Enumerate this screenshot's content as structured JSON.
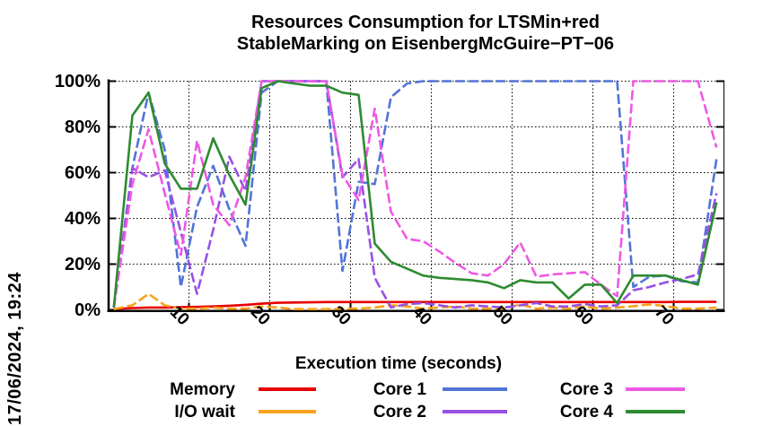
{
  "title": {
    "line1": "Resources Consumption for LTSMin+red",
    "line2": "StableMarking on EisenbergMcGuire−PT−06"
  },
  "datestamp": "17/06/2024, 19:24",
  "axes": {
    "x": {
      "label": "Execution time (seconds)",
      "tick_values": [
        10,
        20,
        30,
        40,
        50,
        60,
        70
      ],
      "range": [
        0,
        76.3
      ]
    },
    "y": {
      "tick_labels": [
        "0%",
        "20%",
        "40%",
        "60%",
        "80%",
        "100%"
      ],
      "tick_values": [
        0,
        20,
        40,
        60,
        80,
        100
      ],
      "range": [
        0,
        100
      ]
    }
  },
  "legend": [
    {
      "label": "Memory",
      "color": "#e60000",
      "dash": "solid"
    },
    {
      "label": "I/O wait",
      "color": "#f9a21b",
      "dash": "dashed"
    },
    {
      "label": "Core 1",
      "color": "#5274d6",
      "dash": "dashed"
    },
    {
      "label": "Core 2",
      "color": "#9651e4",
      "dash": "dashed"
    },
    {
      "label": "Core 3",
      "color": "#ee58e4",
      "dash": "dashed"
    },
    {
      "label": "Core 4",
      "color": "#2e8b30",
      "dash": "solid"
    }
  ],
  "chart_data": {
    "type": "line",
    "title": "Resources Consumption for LTSMin+red StableMarking on EisenbergMcGuire−PT−06",
    "xlabel": "Execution time (seconds)",
    "ylabel": "",
    "xlim": [
      0,
      76.3
    ],
    "ylim": [
      0,
      100
    ],
    "grid": true,
    "grid_style": "dotted",
    "legend_position": "bottom",
    "x": [
      0.7,
      3,
      5,
      7,
      9,
      11,
      13,
      15,
      17,
      19,
      21,
      23,
      25,
      27,
      29,
      31,
      33,
      35,
      37,
      39,
      41,
      43,
      45,
      47,
      49,
      51,
      53,
      55,
      57,
      59,
      61,
      63,
      65,
      67,
      69,
      71,
      73,
      75.3
    ],
    "series": [
      {
        "name": "Memory",
        "color": "#e60000",
        "dash": "solid",
        "values": [
          0.4,
          0.8,
          1.0,
          1.0,
          1.2,
          1.3,
          1.5,
          1.8,
          2.2,
          2.7,
          3.1,
          3.2,
          3.3,
          3.4,
          3.4,
          3.4,
          3.4,
          3.4,
          3.4,
          3.4,
          3.4,
          3.4,
          3.4,
          3.4,
          3.4,
          3.4,
          3.4,
          3.4,
          3.4,
          3.4,
          3.4,
          3.4,
          3.4,
          3.4,
          3.4,
          3.5,
          3.5,
          3.5
        ]
      },
      {
        "name": "I/O wait",
        "color": "#f9a21b",
        "dash": "dashed",
        "values": [
          0.3,
          2,
          7,
          2,
          0.5,
          0.5,
          1,
          0.5,
          0.5,
          1.5,
          1,
          0.3,
          0.3,
          0.3,
          0.5,
          0.5,
          1,
          2,
          1.5,
          0.5,
          1,
          1.5,
          0.5,
          0.5,
          0.5,
          2.4,
          0.5,
          1,
          0.5,
          1.5,
          0.5,
          1,
          1.6,
          2.4,
          1.6,
          0.5,
          0.5,
          1
        ]
      },
      {
        "name": "Core 1",
        "color": "#5274d6",
        "dash": "dashed",
        "values": [
          1,
          62,
          95,
          70,
          10,
          45,
          63,
          44,
          28,
          95,
          100,
          100,
          100,
          100,
          17,
          56,
          55,
          93,
          99,
          100,
          100,
          100,
          100,
          100,
          100,
          100,
          100,
          100,
          100,
          100,
          100,
          100,
          10,
          14.5,
          15,
          12.5,
          12,
          66
        ]
      },
      {
        "name": "Core 2",
        "color": "#9651e4",
        "dash": "dashed",
        "values": [
          1,
          62,
          58,
          61,
          34,
          7,
          35,
          67,
          52,
          100,
          100,
          100,
          100,
          100,
          58,
          66,
          14,
          1,
          2.5,
          3,
          2,
          1,
          2,
          1.5,
          1,
          2,
          3,
          1.5,
          1.5,
          2.5,
          1.5,
          2,
          8.6,
          10,
          12,
          13.5,
          15.5,
          51
        ]
      },
      {
        "name": "Core 3",
        "color": "#ee58e4",
        "dash": "dashed",
        "values": [
          1,
          55,
          79,
          51,
          24,
          74,
          46,
          37,
          58,
          100,
          100,
          100,
          100,
          100,
          59,
          48,
          88,
          43,
          31,
          30,
          25.5,
          20.5,
          16,
          15,
          20,
          29.5,
          14.5,
          15.5,
          16,
          16.5,
          11,
          6,
          100,
          100,
          100,
          100,
          100,
          71
        ]
      },
      {
        "name": "Core 4",
        "color": "#2e8b30",
        "dash": "solid",
        "values": [
          1,
          85,
          95,
          64,
          53,
          53,
          75,
          59,
          46,
          97,
          100,
          99,
          98,
          98,
          95,
          94,
          29,
          21,
          18,
          15,
          14,
          13.5,
          13,
          12,
          9.5,
          13,
          12,
          12,
          5,
          11,
          11,
          3,
          15,
          15,
          15,
          13,
          11,
          47
        ]
      }
    ]
  }
}
